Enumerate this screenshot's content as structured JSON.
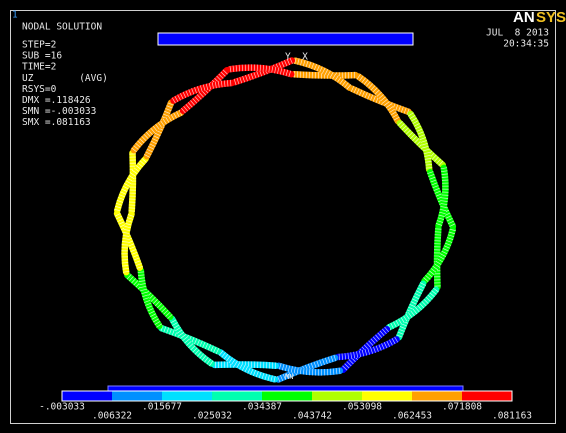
{
  "window_number": "1",
  "info": {
    "lines": [
      "NODAL SOLUTION",
      "STEP=2",
      "SUB =16",
      "TIME=2",
      "UZ        (AVG)",
      "RSYS=0",
      "DMX =.118426",
      "SMN =-.003033",
      "SMX =.081163"
    ]
  },
  "logo": {
    "prefix": "AN",
    "suffix": "SYS"
  },
  "date": "JUL  8 2013",
  "time": "20:34:35",
  "markers": {
    "axes": "Y  X",
    "min": "MN"
  },
  "legend": {
    "colors": [
      "#0000ff",
      "#0090ff",
      "#00e0ff",
      "#00ffb0",
      "#00ff00",
      "#b0ff00",
      "#ffff00",
      "#ffa000",
      "#ff0000"
    ],
    "labels": [
      "-.003033",
      ".006322",
      ".015677",
      ".025032",
      ".034387",
      ".043742",
      ".053098",
      ".062453",
      ".071808",
      ".081163"
    ]
  }
}
